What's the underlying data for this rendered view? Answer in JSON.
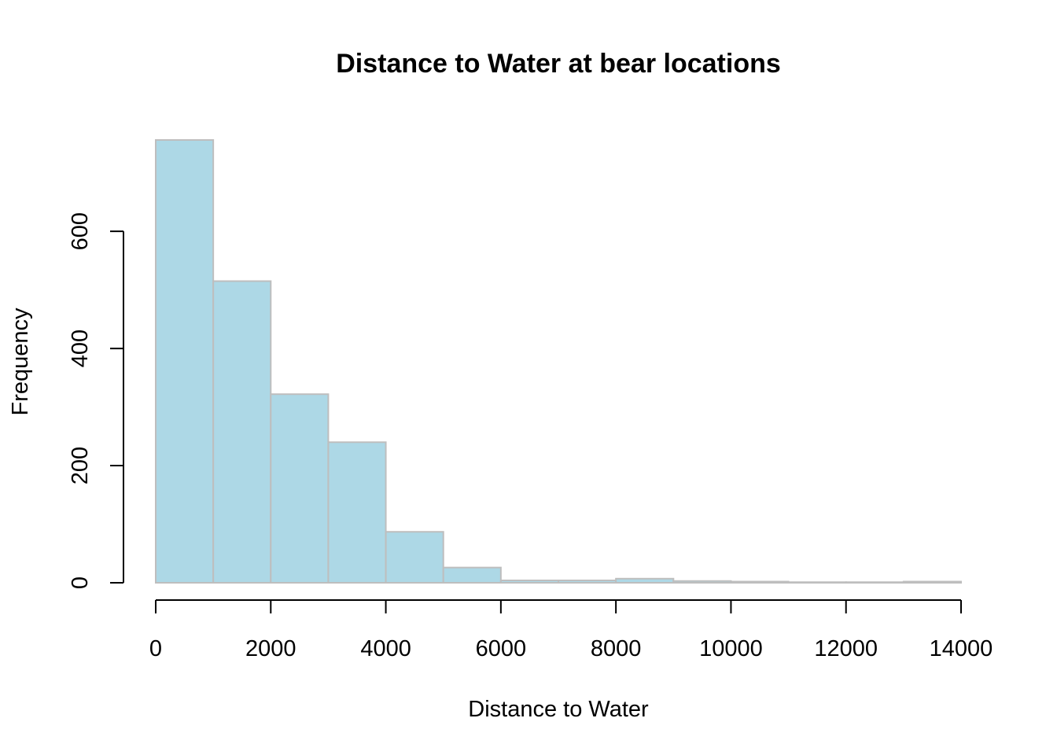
{
  "chart_data": {
    "type": "bar",
    "title": "Distance to Water at bear locations",
    "xlabel": "Distance to Water",
    "ylabel": "Frequency",
    "bin_edges": [
      0,
      1000,
      2000,
      3000,
      4000,
      5000,
      6000,
      7000,
      8000,
      9000,
      10000,
      11000,
      12000,
      13000,
      14000
    ],
    "values": [
      756,
      515,
      322,
      240,
      87,
      26,
      4,
      4,
      7,
      3,
      2,
      1,
      1,
      2
    ],
    "xlim": [
      0,
      14000
    ],
    "ylim": [
      0,
      756
    ],
    "x_ticks": [
      0,
      2000,
      4000,
      6000,
      8000,
      10000,
      12000,
      14000
    ],
    "x_tick_labels": [
      "0",
      "2000",
      "4000",
      "6000",
      "8000",
      "10000",
      "12000",
      "14000"
    ],
    "y_ticks": [
      0,
      200,
      400,
      600
    ],
    "y_tick_labels": [
      "0",
      "200",
      "400",
      "600"
    ],
    "bar_fill": "#add8e6",
    "bar_border": "#bebebe",
    "grid": false,
    "legend": "none"
  }
}
